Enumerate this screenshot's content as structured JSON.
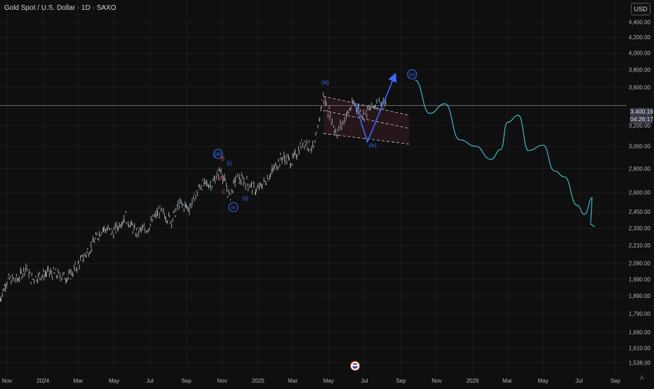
{
  "header": {
    "symbol_title": "Gold Spot / U.S. Dollar · 1D · SAXO"
  },
  "toolbar": {
    "currency": "USD"
  },
  "price_badge": {
    "price": "3,400.16",
    "countdown": "04:26:17"
  },
  "corner_label": "A",
  "colors": {
    "background": "#0f0f0f",
    "candles": "#9aa0a6",
    "forecast_line": "#3fb8c8",
    "impulse_arrow": "#3a6bff",
    "wave_labels": "#3a6bff",
    "abc_labels": "#e0443c",
    "channel_fill": "#3a1d24",
    "price_line": "#9a9a9a"
  },
  "icons": {
    "flag": "us-flag-icon"
  },
  "chart_data": {
    "type": "line",
    "title": "Gold Spot / U.S. Dollar · 1D · SAXO",
    "y_scale": "log",
    "ylim": [
      1500,
      4650
    ],
    "xlim": [
      "2023-10-20",
      "2026-09-20"
    ],
    "grid": true,
    "y_ticks": [
      4400,
      4200,
      4000,
      3800,
      3600,
      3200,
      3000,
      2800,
      2600,
      2450,
      2330,
      2210,
      2090,
      1990,
      1890,
      1790,
      1690,
      1610,
      1538
    ],
    "y_tick_labels": [
      "4,400.00",
      "4,200.00",
      "4,000.00",
      "3,800.00",
      "3,600.00",
      "3,200.00",
      "3,000.00",
      "2,800.00",
      "2,600.00",
      "2,450.00",
      "2,330.00",
      "2,210.00",
      "2,090.00",
      "1,990.00",
      "1,890.00",
      "1,790.00",
      "1,690.00",
      "1,610.00",
      "1,538.00"
    ],
    "x_ticks": [
      {
        "date": "2023-11-01",
        "label": "Nov"
      },
      {
        "date": "2024-01-01",
        "label": "2024"
      },
      {
        "date": "2024-03-01",
        "label": "Mar"
      },
      {
        "date": "2024-05-01",
        "label": "May"
      },
      {
        "date": "2024-07-01",
        "label": "Jul"
      },
      {
        "date": "2024-09-01",
        "label": "Sep"
      },
      {
        "date": "2024-11-01",
        "label": "Nov"
      },
      {
        "date": "2025-01-01",
        "label": "2025"
      },
      {
        "date": "2025-03-01",
        "label": "Mar"
      },
      {
        "date": "2025-05-01",
        "label": "May"
      },
      {
        "date": "2025-07-01",
        "label": "Jul"
      },
      {
        "date": "2025-09-01",
        "label": "Sep"
      },
      {
        "date": "2025-11-01",
        "label": "Nov"
      },
      {
        "date": "2026-01-01",
        "label": "2026"
      },
      {
        "date": "2026-03-01",
        "label": "Mar"
      },
      {
        "date": "2026-05-01",
        "label": "May"
      },
      {
        "date": "2026-07-01",
        "label": "Jul"
      },
      {
        "date": "2026-09-01",
        "label": "Sep"
      }
    ],
    "current_price": 3400.16,
    "price_path": [
      [
        "2023-10-20",
        1868
      ],
      [
        "2023-11-01",
        1985
      ],
      [
        "2023-11-20",
        1990
      ],
      [
        "2023-12-04",
        2070
      ],
      [
        "2023-12-13",
        1990
      ],
      [
        "2024-01-10",
        2030
      ],
      [
        "2024-02-14",
        2000
      ],
      [
        "2024-03-01",
        2080
      ],
      [
        "2024-03-20",
        2180
      ],
      [
        "2024-04-12",
        2330
      ],
      [
        "2024-05-01",
        2300
      ],
      [
        "2024-05-20",
        2420
      ],
      [
        "2024-06-07",
        2300
      ],
      [
        "2024-06-28",
        2330
      ],
      [
        "2024-07-17",
        2460
      ],
      [
        "2024-08-07",
        2385
      ],
      [
        "2024-08-20",
        2510
      ],
      [
        "2024-09-06",
        2480
      ],
      [
        "2024-09-26",
        2660
      ],
      [
        "2024-10-15",
        2670
      ],
      [
        "2024-10-30",
        2790
      ],
      [
        "2024-11-14",
        2560
      ],
      [
        "2024-11-25",
        2720
      ],
      [
        "2024-12-10",
        2690
      ],
      [
        "2024-12-30",
        2615
      ],
      [
        "2025-01-15",
        2700
      ],
      [
        "2025-02-11",
        2900
      ],
      [
        "2025-02-28",
        2860
      ],
      [
        "2025-03-20",
        3050
      ],
      [
        "2025-04-07",
        2970
      ],
      [
        "2025-04-22",
        3500
      ],
      [
        "2025-05-15",
        3120
      ],
      [
        "2025-06-13",
        3430
      ],
      [
        "2025-06-30",
        3300
      ],
      [
        "2025-07-22",
        3430
      ],
      [
        "2025-08-07",
        3390
      ]
    ],
    "channel": {
      "upper": [
        [
          "2025-04-22",
          3500
        ],
        [
          "2025-09-15",
          3300
        ]
      ],
      "middle": [
        [
          "2025-04-22",
          3350
        ],
        [
          "2025-09-15",
          3170
        ]
      ],
      "lower": [
        [
          "2025-04-22",
          3120
        ],
        [
          "2025-09-15",
          3020
        ]
      ]
    },
    "projection_arrow": [
      [
        "2025-06-15",
        3430
      ],
      [
        "2025-07-06",
        3040
      ],
      [
        "2025-08-22",
        3740
      ]
    ],
    "forecast_path": [
      [
        "2025-09-25",
        3680
      ],
      [
        "2025-10-20",
        3320
      ],
      [
        "2025-11-15",
        3420
      ],
      [
        "2025-12-10",
        3060
      ],
      [
        "2026-01-06",
        3000
      ],
      [
        "2026-02-01",
        2880
      ],
      [
        "2026-02-18",
        2970
      ],
      [
        "2026-03-01",
        3230
      ],
      [
        "2026-03-20",
        3300
      ],
      [
        "2026-04-06",
        2960
      ],
      [
        "2026-05-01",
        3010
      ],
      [
        "2026-05-20",
        2780
      ],
      [
        "2026-06-06",
        2730
      ],
      [
        "2026-06-28",
        2500
      ],
      [
        "2026-07-10",
        2430
      ],
      [
        "2026-07-24",
        2560
      ],
      [
        "2026-07-20",
        2360
      ],
      [
        "2026-07-28",
        2340
      ]
    ],
    "wave_labels": [
      {
        "text": "(iii)",
        "date": "2024-10-25",
        "price": 2910,
        "circled": true,
        "color": "blue"
      },
      {
        "text": "B",
        "date": "2024-11-02",
        "price": 2870,
        "circled": false,
        "color": "red"
      },
      {
        "text": "(i)",
        "date": "2024-11-13",
        "price": 2830,
        "circled": false,
        "color": "blue"
      },
      {
        "text": "A",
        "date": "2024-10-30",
        "price": 2700,
        "circled": false,
        "color": "red"
      },
      {
        "text": "C",
        "date": "2024-11-04",
        "price": 2590,
        "circled": false,
        "color": "red"
      },
      {
        "text": "(ii)",
        "date": "2024-12-10",
        "price": 2540,
        "circled": false,
        "color": "blue"
      },
      {
        "text": "iv",
        "date": "2024-11-20",
        "price": 2470,
        "circled": true,
        "color": "blue"
      },
      {
        "text": "(iii)",
        "date": "2025-04-25",
        "price": 3630,
        "circled": false,
        "color": "blue"
      },
      {
        "text": "(iv)",
        "date": "2025-07-15",
        "price": 2990,
        "circled": false,
        "color": "blue"
      },
      {
        "text": "(v)",
        "date": "2025-09-20",
        "price": 3720,
        "circled": true,
        "color": "blue"
      }
    ]
  }
}
